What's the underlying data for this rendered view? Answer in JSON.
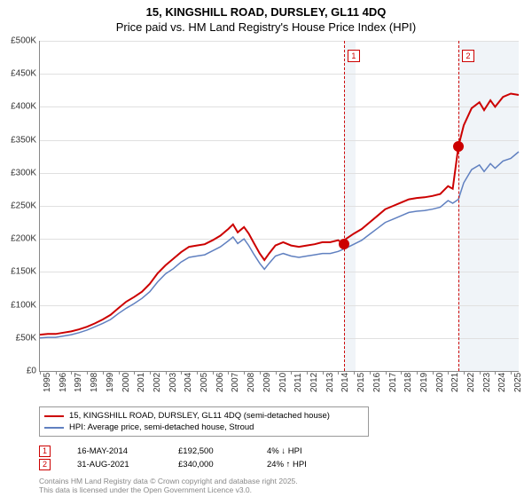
{
  "title_line1": "15, KINGSHILL ROAD, DURSLEY, GL11 4DQ",
  "title_line2": "Price paid vs. HM Land Registry's House Price Index (HPI)",
  "chart": {
    "type": "line",
    "x_start": 1995,
    "x_end": 2025.5,
    "xticks": [
      1995,
      1996,
      1997,
      1998,
      1999,
      2000,
      2001,
      2002,
      2003,
      2004,
      2005,
      2006,
      2007,
      2008,
      2009,
      2010,
      2011,
      2012,
      2013,
      2014,
      2015,
      2016,
      2017,
      2018,
      2019,
      2020,
      2021,
      2022,
      2023,
      2024,
      2025
    ],
    "ylim": [
      0,
      500
    ],
    "yticks": [
      0,
      50,
      100,
      150,
      200,
      250,
      300,
      350,
      400,
      450,
      500
    ],
    "ytick_labels": [
      "£0",
      "£50K",
      "£100K",
      "£150K",
      "£200K",
      "£250K",
      "£300K",
      "£350K",
      "£400K",
      "£450K",
      "£500K"
    ],
    "grid_color": "#e0e0e0",
    "background_color": "#ffffff",
    "shaded_color": "#e8eef5",
    "shaded_ranges": [
      [
        2014.37,
        2015.1
      ],
      [
        2021.66,
        2025.5
      ]
    ],
    "series": [
      {
        "name": "15, KINGSHILL ROAD, DURSLEY, GL11 4DQ (semi-detached house)",
        "color": "#cc0000",
        "width": 2.0,
        "data": [
          [
            1995,
            55
          ],
          [
            1995.5,
            56
          ],
          [
            1996,
            56
          ],
          [
            1996.5,
            58
          ],
          [
            1997,
            60
          ],
          [
            1997.5,
            63
          ],
          [
            1998,
            67
          ],
          [
            1998.5,
            72
          ],
          [
            1999,
            78
          ],
          [
            1999.5,
            85
          ],
          [
            2000,
            95
          ],
          [
            2000.5,
            105
          ],
          [
            2001,
            112
          ],
          [
            2001.5,
            120
          ],
          [
            2002,
            132
          ],
          [
            2002.5,
            148
          ],
          [
            2003,
            160
          ],
          [
            2003.5,
            170
          ],
          [
            2004,
            180
          ],
          [
            2004.5,
            188
          ],
          [
            2005,
            190
          ],
          [
            2005.5,
            192
          ],
          [
            2006,
            198
          ],
          [
            2006.5,
            205
          ],
          [
            2007,
            215
          ],
          [
            2007.3,
            222
          ],
          [
            2007.6,
            210
          ],
          [
            2008,
            218
          ],
          [
            2008.3,
            208
          ],
          [
            2008.6,
            195
          ],
          [
            2009,
            178
          ],
          [
            2009.3,
            168
          ],
          [
            2009.6,
            178
          ],
          [
            2010,
            190
          ],
          [
            2010.5,
            195
          ],
          [
            2011,
            190
          ],
          [
            2011.5,
            188
          ],
          [
            2012,
            190
          ],
          [
            2012.5,
            192
          ],
          [
            2013,
            195
          ],
          [
            2013.5,
            195
          ],
          [
            2014,
            198
          ],
          [
            2014.37,
            192.5
          ],
          [
            2014.5,
            200
          ],
          [
            2015,
            208
          ],
          [
            2015.5,
            215
          ],
          [
            2016,
            225
          ],
          [
            2016.5,
            235
          ],
          [
            2017,
            245
          ],
          [
            2017.5,
            250
          ],
          [
            2018,
            255
          ],
          [
            2018.5,
            260
          ],
          [
            2019,
            262
          ],
          [
            2019.5,
            263
          ],
          [
            2020,
            265
          ],
          [
            2020.5,
            268
          ],
          [
            2021,
            280
          ],
          [
            2021.3,
            276
          ],
          [
            2021.66,
            340
          ],
          [
            2022,
            372
          ],
          [
            2022.5,
            398
          ],
          [
            2023,
            407
          ],
          [
            2023.3,
            395
          ],
          [
            2023.7,
            410
          ],
          [
            2024,
            400
          ],
          [
            2024.5,
            415
          ],
          [
            2025,
            420
          ],
          [
            2025.5,
            418
          ]
        ]
      },
      {
        "name": "HPI: Average price, semi-detached house, Stroud",
        "color": "#6080c0",
        "width": 1.5,
        "data": [
          [
            1995,
            50
          ],
          [
            1995.5,
            51
          ],
          [
            1996,
            51
          ],
          [
            1996.5,
            53
          ],
          [
            1997,
            55
          ],
          [
            1997.5,
            58
          ],
          [
            1998,
            62
          ],
          [
            1998.5,
            67
          ],
          [
            1999,
            72
          ],
          [
            1999.5,
            78
          ],
          [
            2000,
            87
          ],
          [
            2000.5,
            95
          ],
          [
            2001,
            102
          ],
          [
            2001.5,
            110
          ],
          [
            2002,
            120
          ],
          [
            2002.5,
            135
          ],
          [
            2003,
            147
          ],
          [
            2003.5,
            155
          ],
          [
            2004,
            165
          ],
          [
            2004.5,
            172
          ],
          [
            2005,
            174
          ],
          [
            2005.5,
            176
          ],
          [
            2006,
            182
          ],
          [
            2006.5,
            188
          ],
          [
            2007,
            197
          ],
          [
            2007.3,
            203
          ],
          [
            2007.6,
            193
          ],
          [
            2008,
            200
          ],
          [
            2008.3,
            190
          ],
          [
            2008.6,
            178
          ],
          [
            2009,
            163
          ],
          [
            2009.3,
            154
          ],
          [
            2009.6,
            163
          ],
          [
            2010,
            174
          ],
          [
            2010.5,
            178
          ],
          [
            2011,
            174
          ],
          [
            2011.5,
            172
          ],
          [
            2012,
            174
          ],
          [
            2012.5,
            176
          ],
          [
            2013,
            178
          ],
          [
            2013.5,
            178
          ],
          [
            2014,
            181
          ],
          [
            2014.5,
            186
          ],
          [
            2015,
            192
          ],
          [
            2015.5,
            198
          ],
          [
            2016,
            207
          ],
          [
            2016.5,
            216
          ],
          [
            2017,
            225
          ],
          [
            2017.5,
            230
          ],
          [
            2018,
            235
          ],
          [
            2018.5,
            240
          ],
          [
            2019,
            242
          ],
          [
            2019.5,
            243
          ],
          [
            2020,
            245
          ],
          [
            2020.5,
            248
          ],
          [
            2021,
            258
          ],
          [
            2021.3,
            254
          ],
          [
            2021.66,
            260
          ],
          [
            2022,
            285
          ],
          [
            2022.5,
            305
          ],
          [
            2023,
            312
          ],
          [
            2023.3,
            302
          ],
          [
            2023.7,
            314
          ],
          [
            2024,
            307
          ],
          [
            2024.5,
            318
          ],
          [
            2025,
            322
          ],
          [
            2025.5,
            332
          ]
        ]
      }
    ],
    "markers": [
      {
        "label": "1",
        "x": 2014.37,
        "y": 192.5
      },
      {
        "label": "2",
        "x": 2021.66,
        "y": 340
      }
    ]
  },
  "legend": {
    "items": [
      {
        "color": "#cc0000",
        "label": "15, KINGSHILL ROAD, DURSLEY, GL11 4DQ (semi-detached house)"
      },
      {
        "color": "#6080c0",
        "label": "HPI: Average price, semi-detached house, Stroud"
      }
    ]
  },
  "sales": [
    {
      "num": "1",
      "date": "16-MAY-2014",
      "price": "£192,500",
      "delta": "4% ↓ HPI"
    },
    {
      "num": "2",
      "date": "31-AUG-2021",
      "price": "£340,000",
      "delta": "24% ↑ HPI"
    }
  ],
  "footer_line1": "Contains HM Land Registry data © Crown copyright and database right 2025.",
  "footer_line2": "This data is licensed under the Open Government Licence v3.0."
}
